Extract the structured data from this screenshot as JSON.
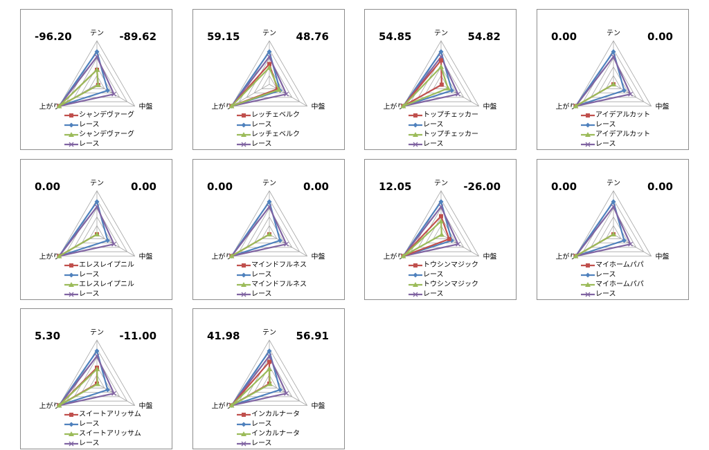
{
  "axes_labels": [
    "テン",
    "中盤",
    "上がり"
  ],
  "series_colors": [
    "#c0504d",
    "#4f81bd",
    "#9bbb59",
    "#8064a2"
  ],
  "series_markers": [
    "square",
    "diamond",
    "triangle",
    "x"
  ],
  "rmax": 60,
  "grid_rings": 5,
  "chart_data": [
    {
      "type": "radar",
      "left_value": "-96.20",
      "right_value": "-89.62",
      "categories": [
        "テン",
        "中盤",
        "上がり"
      ],
      "series": [
        {
          "name": "シャンデヴァーグ",
          "values": [
            20,
            2,
            60
          ]
        },
        {
          "name": "レース",
          "values": [
            45,
            17,
            60
          ]
        },
        {
          "name": "シャンデヴァーグ",
          "values": [
            20,
            2,
            60
          ]
        },
        {
          "name": "レース",
          "values": [
            38,
            27,
            60
          ]
        }
      ]
    },
    {
      "type": "radar",
      "left_value": "59.15",
      "right_value": "48.76",
      "categories": [
        "テン",
        "中盤",
        "上がり"
      ],
      "series": [
        {
          "name": "レッチェベルク",
          "values": [
            28,
            13,
            60
          ]
        },
        {
          "name": "レース",
          "values": [
            45,
            17,
            60
          ]
        },
        {
          "name": "レッチェベルク",
          "values": [
            23,
            15,
            60
          ]
        },
        {
          "name": "レース",
          "values": [
            38,
            27,
            60
          ]
        }
      ]
    },
    {
      "type": "radar",
      "left_value": "54.85",
      "right_value": "54.82",
      "categories": [
        "テン",
        "中盤",
        "上がり"
      ],
      "series": [
        {
          "name": "トップチェッカー",
          "values": [
            33,
            1,
            60
          ]
        },
        {
          "name": "レース",
          "values": [
            45,
            17,
            60
          ]
        },
        {
          "name": "トップチェッカー",
          "values": [
            24,
            11,
            60
          ]
        },
        {
          "name": "レース",
          "values": [
            38,
            27,
            60
          ]
        }
      ]
    },
    {
      "type": "radar",
      "left_value": "0.00",
      "right_value": "0.00",
      "categories": [
        "テン",
        "中盤",
        "上がり"
      ],
      "series": [
        {
          "name": "アイデアルカット",
          "values": [
            0,
            0,
            60
          ]
        },
        {
          "name": "レース",
          "values": [
            45,
            17,
            60
          ]
        },
        {
          "name": "アイデアルカット",
          "values": [
            0,
            0,
            60
          ]
        },
        {
          "name": "レース",
          "values": [
            38,
            27,
            60
          ]
        }
      ]
    },
    {
      "type": "radar",
      "left_value": "0.00",
      "right_value": "0.00",
      "categories": [
        "テン",
        "中盤",
        "上がり"
      ],
      "series": [
        {
          "name": "エレスレイプニル",
          "values": [
            0,
            0,
            60
          ]
        },
        {
          "name": "レース",
          "values": [
            45,
            17,
            60
          ]
        },
        {
          "name": "エレスレイプニル",
          "values": [
            0,
            0,
            60
          ]
        },
        {
          "name": "レース",
          "values": [
            38,
            27,
            60
          ]
        }
      ]
    },
    {
      "type": "radar",
      "left_value": "0.00",
      "right_value": "0.00",
      "categories": [
        "テン",
        "中盤",
        "上がり"
      ],
      "series": [
        {
          "name": "マインドフルネス",
          "values": [
            0,
            0,
            60
          ]
        },
        {
          "name": "レース",
          "values": [
            45,
            17,
            60
          ]
        },
        {
          "name": "マインドフルネス",
          "values": [
            0,
            0,
            60
          ]
        },
        {
          "name": "レース",
          "values": [
            38,
            27,
            60
          ]
        }
      ]
    },
    {
      "type": "radar",
      "left_value": "12.05",
      "right_value": "-26.00",
      "categories": [
        "テン",
        "中盤",
        "上がり"
      ],
      "series": [
        {
          "name": "トウシンマジック",
          "values": [
            25,
            13,
            60
          ]
        },
        {
          "name": "レース",
          "values": [
            45,
            17,
            60
          ]
        },
        {
          "name": "トウシンマジック",
          "values": [
            18,
            1,
            60
          ]
        },
        {
          "name": "レース",
          "values": [
            38,
            27,
            60
          ]
        }
      ]
    },
    {
      "type": "radar",
      "left_value": "0.00",
      "right_value": "0.00",
      "categories": [
        "テン",
        "中盤",
        "上がり"
      ],
      "series": [
        {
          "name": "マイホームパパ",
          "values": [
            0,
            0,
            60
          ]
        },
        {
          "name": "レース",
          "values": [
            45,
            17,
            60
          ]
        },
        {
          "name": "マイホームパパ",
          "values": [
            0,
            0,
            60
          ]
        },
        {
          "name": "レース",
          "values": [
            38,
            27,
            60
          ]
        }
      ]
    },
    {
      "type": "radar",
      "left_value": "5.30",
      "right_value": "-11.00",
      "categories": [
        "テン",
        "中盤",
        "上がり"
      ],
      "series": [
        {
          "name": "スイートアリッサム",
          "values": [
            22,
            0,
            60
          ]
        },
        {
          "name": "レース",
          "values": [
            45,
            17,
            60
          ]
        },
        {
          "name": "スイートアリッサム",
          "values": [
            20,
            1,
            60
          ]
        },
        {
          "name": "レース",
          "values": [
            38,
            27,
            60
          ]
        }
      ]
    },
    {
      "type": "radar",
      "left_value": "41.98",
      "right_value": "56.91",
      "categories": [
        "テン",
        "中盤",
        "上がり"
      ],
      "series": [
        {
          "name": "インカルナータ",
          "values": [
            30,
            0,
            60
          ]
        },
        {
          "name": "レース",
          "values": [
            45,
            17,
            60
          ]
        },
        {
          "name": "インカルナータ",
          "values": [
            20,
            1,
            60
          ]
        },
        {
          "name": "レース",
          "values": [
            38,
            27,
            60
          ]
        }
      ]
    }
  ]
}
